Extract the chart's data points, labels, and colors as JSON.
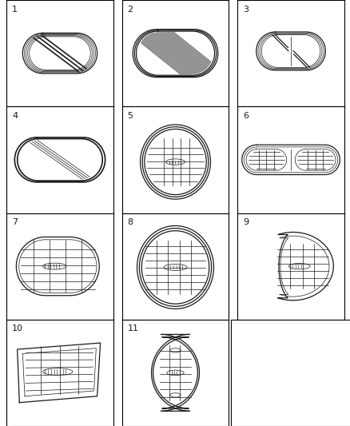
{
  "bg_color": "#ffffff",
  "line_color": "#1a1a1a",
  "grid_line_color": "#000000",
  "label_fontsize": 8,
  "fig_width": 4.39,
  "fig_height": 5.33
}
